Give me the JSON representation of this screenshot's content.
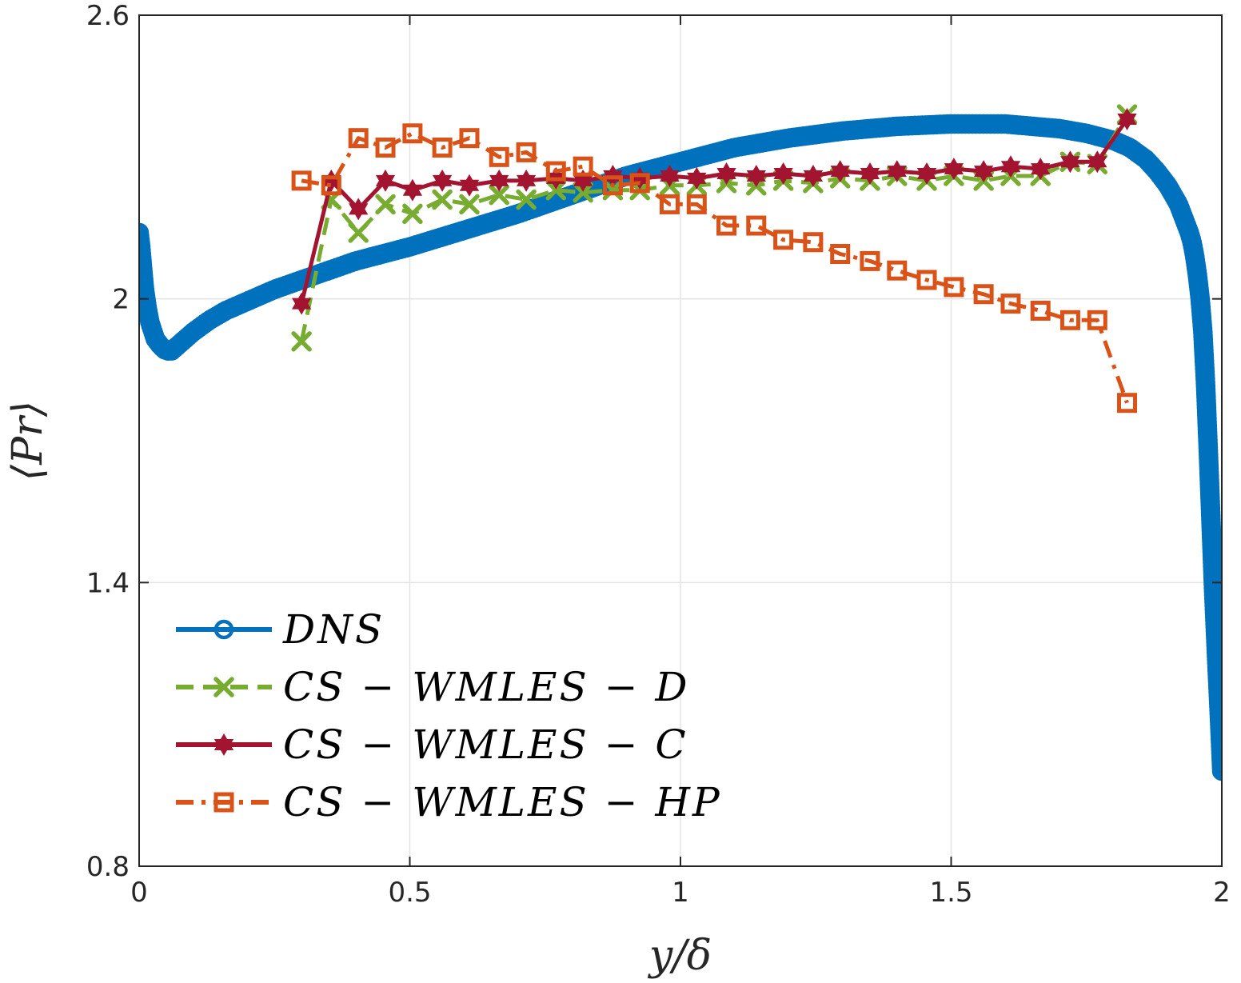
{
  "chart_data": {
    "type": "line",
    "title": "",
    "xlabel": "y/δ",
    "ylabel": "⟨Pr⟩",
    "xlim": [
      0,
      2
    ],
    "ylim": [
      0.8,
      2.6
    ],
    "grid": true,
    "legend_position": "bottom-left",
    "x_ticks": [
      0,
      0.5,
      1,
      1.5,
      2
    ],
    "x_tick_labels": [
      "0",
      "0.5",
      "1",
      "1.5",
      "2"
    ],
    "y_ticks": [
      0.8,
      1.4,
      2.0,
      2.6
    ],
    "y_tick_labels": [
      "0.8",
      "1.4",
      "2",
      "2.6"
    ],
    "series": [
      {
        "name": "DNS",
        "label": "DNS",
        "color": "#0072BD",
        "dash": "solid",
        "marker": "circle",
        "dense": true,
        "x": [
          0,
          0.003,
          0.006,
          0.01,
          0.015,
          0.02,
          0.03,
          0.04,
          0.05,
          0.06,
          0.07,
          0.085,
          0.1,
          0.13,
          0.16,
          0.2,
          0.25,
          0.3,
          0.35,
          0.4,
          0.5,
          0.6,
          0.7,
          0.8,
          0.9,
          1.0,
          1.1,
          1.2,
          1.3,
          1.4,
          1.5,
          1.6,
          1.7,
          1.75,
          1.8,
          1.83,
          1.86,
          1.88,
          1.9,
          1.91,
          1.92,
          1.93,
          1.94,
          1.945,
          1.95,
          1.955,
          1.96,
          1.965,
          1.97,
          1.975,
          1.98,
          1.985,
          1.99,
          1.995,
          2.0
        ],
        "y": [
          2.14,
          2.11,
          2.07,
          2.02,
          1.98,
          1.95,
          1.915,
          1.9,
          1.89,
          1.89,
          1.9,
          1.915,
          1.93,
          1.955,
          1.975,
          1.995,
          2.02,
          2.04,
          2.06,
          2.08,
          2.11,
          2.145,
          2.18,
          2.22,
          2.26,
          2.29,
          2.32,
          2.34,
          2.355,
          2.365,
          2.37,
          2.37,
          2.36,
          2.35,
          2.335,
          2.32,
          2.295,
          2.27,
          2.24,
          2.22,
          2.2,
          2.17,
          2.14,
          2.12,
          2.09,
          2.05,
          2.0,
          1.93,
          1.82,
          1.68,
          1.53,
          1.38,
          1.25,
          1.13,
          1.0
        ]
      },
      {
        "name": "CS-WMLES-D",
        "label": "CS − WMLES − D",
        "color": "#77AC30",
        "dash": "dashed",
        "marker": "x",
        "x": [
          0.3,
          0.355,
          0.405,
          0.455,
          0.505,
          0.56,
          0.61,
          0.665,
          0.715,
          0.77,
          0.82,
          0.875,
          0.925,
          0.98,
          1.03,
          1.085,
          1.14,
          1.19,
          1.245,
          1.295,
          1.35,
          1.4,
          1.455,
          1.505,
          1.56,
          1.61,
          1.665,
          1.72,
          1.77,
          1.825
        ],
        "y": [
          1.91,
          2.21,
          2.14,
          2.2,
          2.18,
          2.21,
          2.2,
          2.22,
          2.21,
          2.23,
          2.225,
          2.23,
          2.23,
          2.24,
          2.24,
          2.245,
          2.24,
          2.25,
          2.245,
          2.255,
          2.25,
          2.26,
          2.25,
          2.26,
          2.25,
          2.26,
          2.26,
          2.29,
          2.285,
          2.39
        ]
      },
      {
        "name": "CS-WMLES-C",
        "label": "CS − WMLES − C",
        "color": "#A2142F",
        "dash": "solid",
        "marker": "hexagram",
        "x": [
          0.3,
          0.355,
          0.405,
          0.455,
          0.505,
          0.56,
          0.61,
          0.665,
          0.715,
          0.77,
          0.82,
          0.875,
          0.925,
          0.98,
          1.03,
          1.085,
          1.14,
          1.19,
          1.245,
          1.295,
          1.35,
          1.4,
          1.455,
          1.505,
          1.56,
          1.61,
          1.665,
          1.72,
          1.77,
          1.825
        ],
        "y": [
          1.99,
          2.25,
          2.19,
          2.25,
          2.23,
          2.25,
          2.24,
          2.25,
          2.25,
          2.255,
          2.25,
          2.26,
          2.255,
          2.26,
          2.255,
          2.265,
          2.26,
          2.265,
          2.26,
          2.27,
          2.265,
          2.27,
          2.265,
          2.275,
          2.27,
          2.28,
          2.275,
          2.29,
          2.29,
          2.38
        ]
      },
      {
        "name": "CS-WMLES-HP",
        "label": "CS − WMLES − HP",
        "color": "#D95319",
        "dash": "dashdot",
        "marker": "square",
        "x": [
          0.3,
          0.355,
          0.405,
          0.455,
          0.505,
          0.56,
          0.61,
          0.665,
          0.715,
          0.77,
          0.82,
          0.875,
          0.925,
          0.98,
          1.03,
          1.085,
          1.14,
          1.19,
          1.245,
          1.295,
          1.35,
          1.4,
          1.455,
          1.505,
          1.56,
          1.61,
          1.665,
          1.72,
          1.77,
          1.825
        ],
        "y": [
          2.25,
          2.24,
          2.34,
          2.32,
          2.35,
          2.32,
          2.34,
          2.3,
          2.31,
          2.27,
          2.28,
          2.24,
          2.245,
          2.2,
          2.2,
          2.155,
          2.155,
          2.125,
          2.12,
          2.095,
          2.08,
          2.06,
          2.04,
          2.025,
          2.01,
          1.99,
          1.975,
          1.955,
          1.955,
          1.78
        ]
      }
    ]
  }
}
